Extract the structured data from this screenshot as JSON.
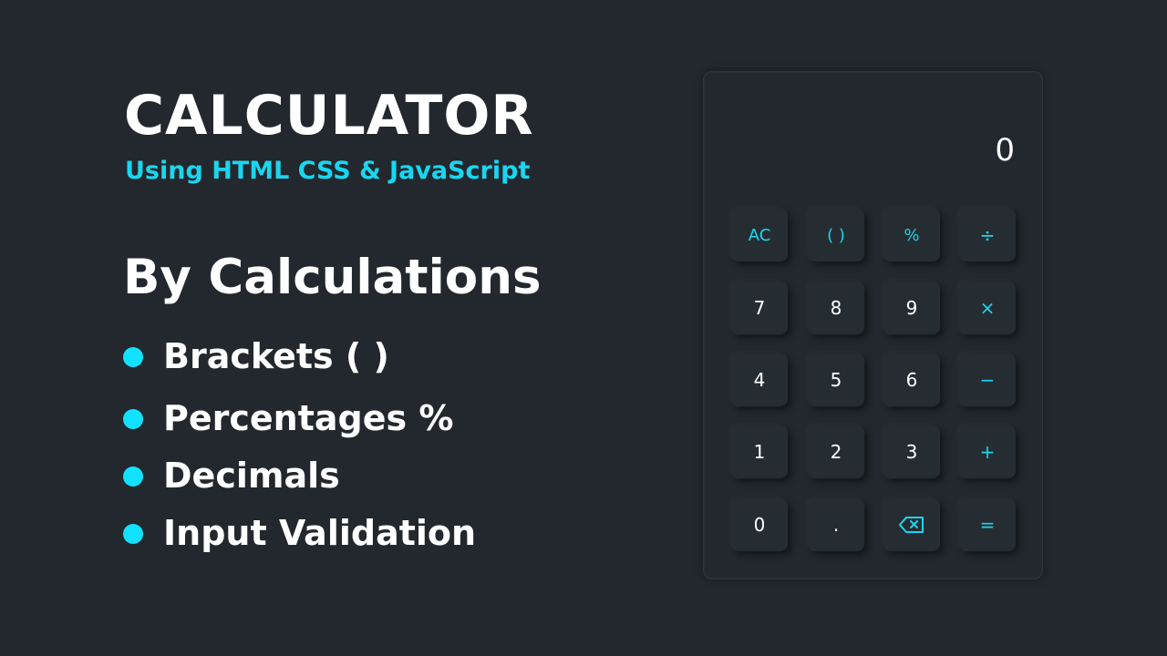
{
  "promo": {
    "title": "CALCULATOR",
    "subtitle": "Using HTML CSS & JavaScript",
    "heading": "By Calculations",
    "features": [
      "Brackets (  )",
      "Percentages %",
      "Decimals",
      "Input Validation"
    ]
  },
  "calculator": {
    "display": "0",
    "keys": [
      {
        "label": "AC",
        "name": "all-clear-button",
        "op": true
      },
      {
        "label": "( )",
        "name": "brackets-button",
        "op": true
      },
      {
        "label": "%",
        "name": "percent-button",
        "op": true
      },
      {
        "label": "÷",
        "name": "divide-button",
        "op": true
      },
      {
        "label": "7",
        "name": "digit-7-button",
        "op": false
      },
      {
        "label": "8",
        "name": "digit-8-button",
        "op": false
      },
      {
        "label": "9",
        "name": "digit-9-button",
        "op": false
      },
      {
        "label": "×",
        "name": "multiply-button",
        "op": true
      },
      {
        "label": "4",
        "name": "digit-4-button",
        "op": false
      },
      {
        "label": "5",
        "name": "digit-5-button",
        "op": false
      },
      {
        "label": "6",
        "name": "digit-6-button",
        "op": false
      },
      {
        "label": "−",
        "name": "subtract-button",
        "op": true
      },
      {
        "label": "1",
        "name": "digit-1-button",
        "op": false
      },
      {
        "label": "2",
        "name": "digit-2-button",
        "op": false
      },
      {
        "label": "3",
        "name": "digit-3-button",
        "op": false
      },
      {
        "label": "+",
        "name": "add-button",
        "op": true
      },
      {
        "label": "0",
        "name": "digit-0-button",
        "op": false
      },
      {
        "label": ".",
        "name": "decimal-button",
        "op": false
      },
      {
        "label": "",
        "name": "backspace-button",
        "op": true,
        "icon": "backspace-icon"
      },
      {
        "label": "=",
        "name": "equals-button",
        "op": true
      }
    ]
  },
  "colors": {
    "accent": "#19d6f0",
    "bullet": "#11e2ff",
    "background": "#22282d"
  }
}
